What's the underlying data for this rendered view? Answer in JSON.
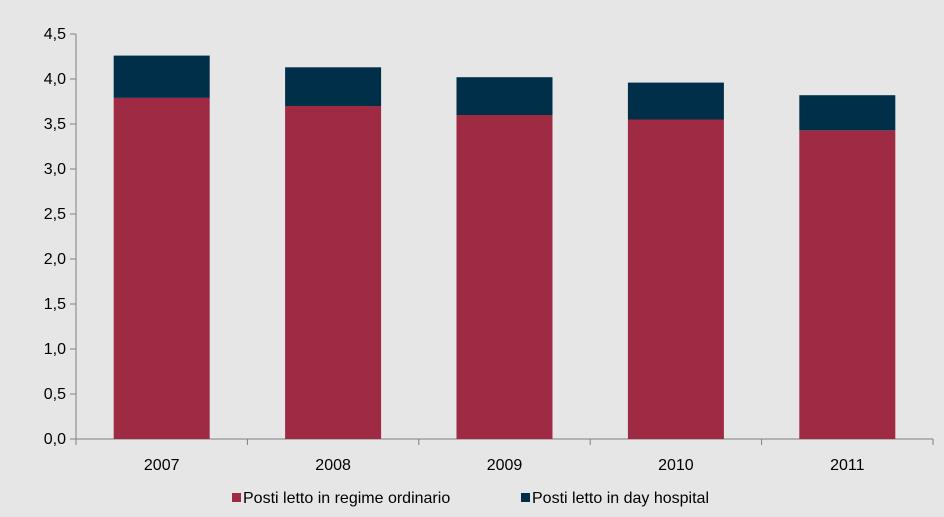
{
  "chart_data": {
    "type": "bar",
    "stacked": true,
    "categories": [
      "2007",
      "2008",
      "2009",
      "2010",
      "2011"
    ],
    "series": [
      {
        "name": "Posti letto in regime ordinario",
        "values": [
          3.79,
          3.7,
          3.6,
          3.55,
          3.43
        ],
        "color": "#9e2a44"
      },
      {
        "name": "Posti letto in day hospital",
        "values": [
          0.47,
          0.43,
          0.42,
          0.41,
          0.39
        ],
        "color": "#003049"
      }
    ],
    "ylim": [
      0,
      4.5
    ],
    "yticks": [
      "0,0",
      "0,5",
      "1,0",
      "1,5",
      "2,0",
      "2,5",
      "3,0",
      "3,5",
      "4,0",
      "4,5"
    ],
    "grid": false,
    "legend_position": "bottom"
  }
}
